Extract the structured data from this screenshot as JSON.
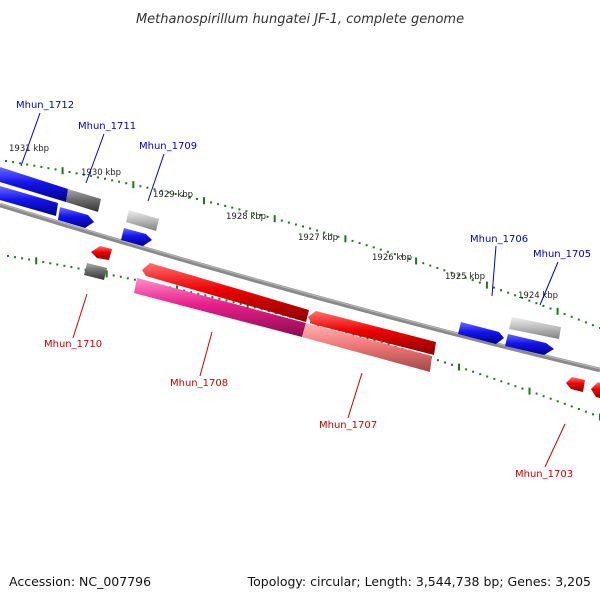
{
  "title": "Methanospirillum hungatei JF-1, complete genome",
  "footer": {
    "accession": "Accession: NC_007796",
    "summary": "Topology: circular; Length: 3,544,738 bp; Genes: 3,205"
  },
  "scale_labels": [
    "1931 kbp",
    "1930 kbp",
    "1929 kbp",
    "1928 kbp",
    "1927 kbp",
    "1926 kbp",
    "1925 kbp",
    "1924 kbp"
  ],
  "genes": [
    {
      "name": "Mhun_1712",
      "strand": "forward",
      "color": "#0000cc"
    },
    {
      "name": "Mhun_1711",
      "strand": "forward",
      "color": "#0000cc"
    },
    {
      "name": "Mhun_1709",
      "strand": "forward",
      "color": "#0000cc"
    },
    {
      "name": "Mhun_1706",
      "strand": "forward",
      "color": "#0000cc"
    },
    {
      "name": "Mhun_1705",
      "strand": "forward",
      "color": "#0000cc"
    },
    {
      "name": "Mhun_1710",
      "strand": "reverse",
      "color": "#cc0000"
    },
    {
      "name": "Mhun_1708",
      "strand": "reverse",
      "color": "#cc0000"
    },
    {
      "name": "Mhun_1707",
      "strand": "reverse",
      "color": "#cc0000"
    },
    {
      "name": "Mhun_1703",
      "strand": "reverse",
      "color": "#cc0000"
    }
  ],
  "colors": {
    "backbone": "#7a7a7a",
    "tick": "#1a7a1a",
    "forward_feature": "#1a1aee",
    "reverse_feature": "#ee1111",
    "pink_feature": "#e8308a",
    "gray_feature": "#777777",
    "light_gray_feature": "#bbbbbb"
  }
}
